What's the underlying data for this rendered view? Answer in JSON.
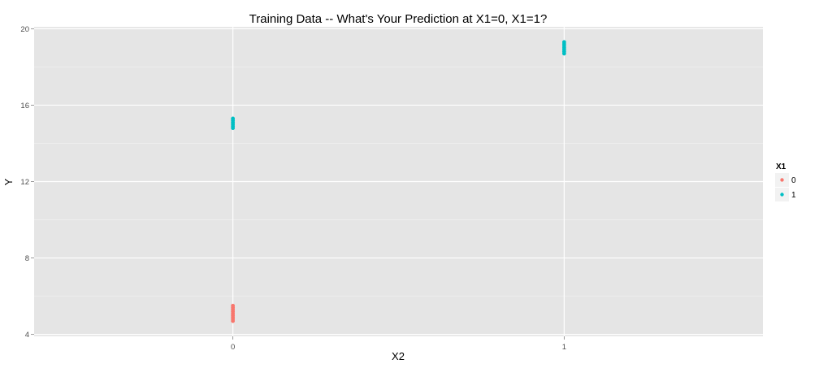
{
  "chart_data": {
    "type": "scatter",
    "title": "Training Data -- What's Your Prediction at X1=0, X1=1?",
    "xlabel": "X2",
    "ylabel": "Y",
    "x_categories": [
      "0",
      "1"
    ],
    "xlim": [
      -0.6,
      1.6
    ],
    "ylim": [
      3.9,
      20.1
    ],
    "yticks": [
      4,
      8,
      12,
      16,
      20
    ],
    "grid": true,
    "legend": {
      "title": "X1",
      "position": "right"
    },
    "series": [
      {
        "name": "0",
        "color": "#F8766D",
        "points": [
          {
            "x": 0,
            "y": 4.7
          },
          {
            "x": 0,
            "y": 4.8
          },
          {
            "x": 0,
            "y": 4.9
          },
          {
            "x": 0,
            "y": 5.0
          },
          {
            "x": 0,
            "y": 5.1
          },
          {
            "x": 0,
            "y": 5.2
          },
          {
            "x": 0,
            "y": 5.3
          },
          {
            "x": 0,
            "y": 5.4
          },
          {
            "x": 0,
            "y": 5.5
          }
        ]
      },
      {
        "name": "1",
        "color": "#00BFC4",
        "points": [
          {
            "x": 0,
            "y": 14.8
          },
          {
            "x": 0,
            "y": 14.9
          },
          {
            "x": 0,
            "y": 15.0
          },
          {
            "x": 0,
            "y": 15.1
          },
          {
            "x": 0,
            "y": 15.2
          },
          {
            "x": 0,
            "y": 15.3
          },
          {
            "x": 1,
            "y": 18.7
          },
          {
            "x": 1,
            "y": 18.8
          },
          {
            "x": 1,
            "y": 18.9
          },
          {
            "x": 1,
            "y": 19.0
          },
          {
            "x": 1,
            "y": 19.1
          },
          {
            "x": 1,
            "y": 19.2
          },
          {
            "x": 1,
            "y": 19.3
          }
        ]
      }
    ]
  }
}
